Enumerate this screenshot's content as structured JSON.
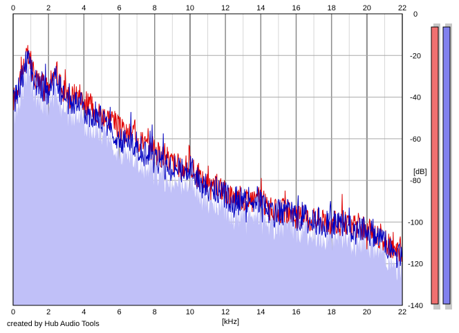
{
  "chart_data": {
    "type": "area",
    "xlabel": "[kHz]",
    "ylabel": "[dB]",
    "xlim": [
      0,
      22
    ],
    "ylim": [
      -140,
      0
    ],
    "x_ticks": [
      0,
      2,
      4,
      6,
      8,
      10,
      12,
      14,
      16,
      18,
      20,
      22
    ],
    "y_ticks": [
      0,
      -20,
      -40,
      -60,
      -80,
      -100,
      -120,
      -140
    ],
    "grid": true,
    "colors": {
      "channel_1": "#e00000",
      "channel_2": "#0000c0",
      "fill": "#c0c0f8",
      "level_meter_1": "#f07070",
      "level_meter_2": "#8080ee"
    },
    "series": [
      {
        "color": "#e00000",
        "x": [
          0,
          0.4,
          0.8,
          1.2,
          1.6,
          2.0,
          2.4,
          2.8,
          3.2,
          3.6,
          4.0,
          4.4,
          4.8,
          5.2,
          5.6,
          6.0,
          6.4,
          6.8,
          7.2,
          7.6,
          8.0,
          8.4,
          8.8,
          9.2,
          9.6,
          10.0,
          10.4,
          10.8,
          11.2,
          11.6,
          12.0,
          12.4,
          12.8,
          13.2,
          13.6,
          14.0,
          14.4,
          14.8,
          15.2,
          15.6,
          16.0,
          16.4,
          16.8,
          17.2,
          17.6,
          18.0,
          18.4,
          18.8,
          19.2,
          19.6,
          20.0,
          20.4,
          20.8,
          21.2,
          21.6,
          22.0
        ],
        "values": [
          -42,
          -30,
          -20,
          -30,
          -32,
          -38,
          -27,
          -36,
          -40,
          -38,
          -42,
          -44,
          -47,
          -49,
          -50,
          -55,
          -58,
          -57,
          -60,
          -64,
          -66,
          -68,
          -70,
          -72,
          -75,
          -72,
          -78,
          -80,
          -85,
          -82,
          -86,
          -87,
          -88,
          -89,
          -88,
          -89,
          -93,
          -95,
          -94,
          -95,
          -98,
          -96,
          -99,
          -98,
          -100,
          -100,
          -101,
          -100,
          -103,
          -102,
          -104,
          -105,
          -108,
          -110,
          -114,
          -115
        ]
      },
      {
        "color": "#0000c0",
        "x": [
          0,
          0.4,
          0.8,
          1.2,
          1.6,
          2.0,
          2.4,
          2.8,
          3.2,
          3.6,
          4.0,
          4.4,
          4.8,
          5.2,
          5.6,
          6.0,
          6.4,
          6.8,
          7.2,
          7.6,
          8.0,
          8.4,
          8.8,
          9.2,
          9.6,
          10.0,
          10.4,
          10.8,
          11.2,
          11.6,
          12.0,
          12.4,
          12.8,
          13.2,
          13.6,
          14.0,
          14.4,
          14.8,
          15.2,
          15.6,
          16.0,
          16.4,
          16.8,
          17.2,
          17.6,
          18.0,
          18.4,
          18.8,
          19.2,
          19.6,
          20.0,
          20.4,
          20.8,
          21.2,
          21.6,
          22.0
        ],
        "values": [
          -44,
          -33,
          -22,
          -32,
          -34,
          -40,
          -30,
          -40,
          -44,
          -42,
          -46,
          -48,
          -50,
          -52,
          -55,
          -60,
          -62,
          -62,
          -65,
          -68,
          -70,
          -72,
          -73,
          -74,
          -76,
          -74,
          -80,
          -82,
          -86,
          -85,
          -88,
          -89,
          -90,
          -90,
          -89,
          -90,
          -94,
          -96,
          -95,
          -96,
          -99,
          -97,
          -100,
          -99,
          -101,
          -101,
          -102,
          -101,
          -104,
          -103,
          -105,
          -106,
          -109,
          -112,
          -115,
          -116
        ]
      }
    ],
    "level_meters": [
      -4,
      -4
    ]
  },
  "footer": {
    "credit": "created by Hub Audio Tools"
  }
}
